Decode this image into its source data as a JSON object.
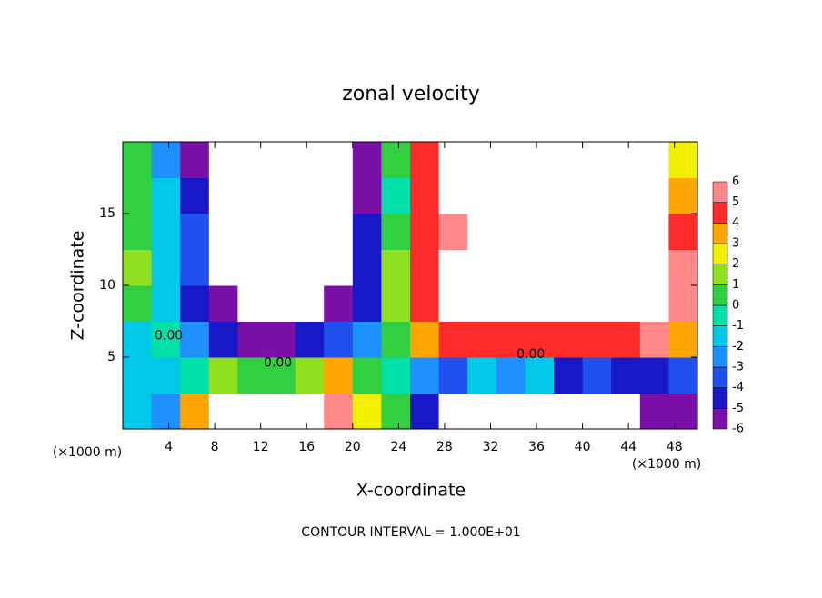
{
  "chart_data": {
    "type": "heatmap",
    "title": "zonal velocity",
    "x_label": "X-coordinate",
    "y_label": "Z-coordinate",
    "unit_label": "(×1000 m)",
    "footer": "CONTOUR INTERVAL = 1.000E+01",
    "xlim": [
      0,
      50
    ],
    "ylim": [
      0,
      20
    ],
    "xticks": [
      4,
      8,
      12,
      16,
      20,
      24,
      28,
      32,
      36,
      40,
      44,
      48
    ],
    "yticks": [
      5,
      10,
      15
    ],
    "x": [
      1.25,
      3.75,
      6.25,
      8.75,
      11.25,
      13.75,
      16.25,
      18.75,
      21.25,
      23.75,
      26.25,
      28.75,
      31.25,
      33.75,
      36.25,
      38.75,
      41.25,
      43.75,
      46.25,
      48.75
    ],
    "y": [
      1.25,
      3.75,
      6.25,
      8.75,
      11.25,
      13.75,
      16.25,
      18.75
    ],
    "z": [
      [
        -1,
        -2,
        4,
        8,
        8,
        8,
        8,
        6,
        3,
        1,
        -4,
        -8,
        -8,
        -8,
        -8,
        -8,
        -8,
        -8,
        -6,
        -5
      ],
      [
        -1,
        -1,
        0,
        2,
        1,
        1,
        2,
        4,
        1,
        0,
        -2,
        -3,
        -1,
        -2,
        -1,
        -4,
        -3,
        -4,
        -4,
        -3
      ],
      [
        -1,
        0,
        -2,
        -4,
        -5,
        -5,
        -4,
        -3,
        -2,
        1,
        4,
        5,
        5,
        5,
        5,
        5,
        5,
        5,
        6,
        4
      ],
      [
        1,
        -1,
        -4,
        -6,
        -7,
        -7,
        -7,
        -5,
        -4,
        2,
        5,
        8,
        8,
        8,
        8,
        8,
        8,
        8,
        8,
        6
      ],
      [
        2,
        -1,
        -3,
        -8,
        -8,
        -8,
        -8,
        -8,
        -4,
        2,
        5,
        8,
        8,
        8,
        8,
        8,
        8,
        8,
        8,
        6
      ],
      [
        1,
        -1,
        -3,
        -8,
        -8,
        -8,
        -8,
        -8,
        -4,
        1,
        5,
        6,
        8,
        8,
        8,
        8,
        8,
        8,
        8,
        5
      ],
      [
        1,
        -1,
        -4,
        -8,
        -8,
        -8,
        -8,
        -8,
        -5,
        0,
        5,
        8,
        8,
        8,
        8,
        8,
        8,
        8,
        8,
        4
      ],
      [
        0.5,
        -2,
        -5,
        -8,
        -8,
        -8,
        -8,
        -8,
        -5,
        1,
        5,
        8,
        8,
        8,
        8,
        8,
        8,
        8,
        8,
        3
      ]
    ],
    "colorbar": {
      "levels": [
        -6,
        -5,
        -4,
        -3,
        -2,
        -1,
        0,
        1,
        2,
        3,
        4,
        5,
        6
      ],
      "colors": [
        "#7a10a8",
        "#1818c8",
        "#2050f0",
        "#1e90ff",
        "#00c8e8",
        "#00e0a8",
        "#30d040",
        "#90e020",
        "#f0f000",
        "#ffa500",
        "#ff2a2a",
        "#ff8888"
      ],
      "out_of_range_color": "#ffffff"
    },
    "contour_labels": [
      {
        "text": "0.00",
        "x": 4,
        "y": 6.5
      },
      {
        "text": "0.00",
        "x": 13.5,
        "y": 4.6
      },
      {
        "text": "0.00",
        "x": 35.5,
        "y": 5.2
      }
    ]
  }
}
